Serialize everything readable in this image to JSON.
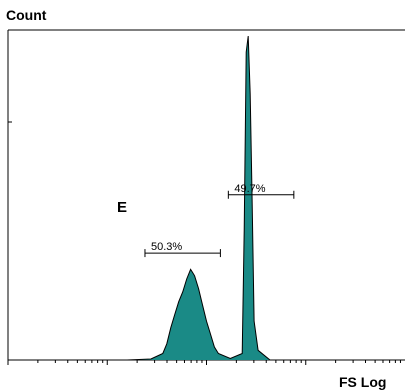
{
  "chart_data": {
    "type": "area",
    "title": "",
    "xlabel": "FS Log",
    "ylabel": "Count",
    "x_scale": "log",
    "x_decades": 4,
    "grid": false,
    "panel_label": "E",
    "fill_color": "#1a8a86",
    "outline_color": "#000000",
    "series": [
      {
        "x": [
          0.0,
          0.3,
          0.36,
          0.39,
          0.4,
          0.41,
          0.42,
          0.43,
          0.44,
          0.45,
          0.46,
          0.465,
          0.47,
          0.48,
          0.49,
          0.5,
          0.51,
          0.52,
          0.53,
          0.56,
          0.59,
          0.595,
          0.6,
          0.605,
          0.61,
          0.615,
          0.62,
          0.63,
          0.66,
          1.0
        ],
        "y": [
          0,
          0,
          0.3,
          2,
          5,
          10,
          14,
          18,
          21,
          25,
          28,
          27,
          26,
          22,
          17,
          12,
          8,
          4,
          2,
          0.5,
          2,
          40,
          95,
          100,
          82,
          48,
          12,
          3,
          0,
          0
        ]
      }
    ],
    "ylim": [
      0,
      100
    ],
    "gates": [
      {
        "label": "50.3%",
        "x_start": 0.345,
        "x_end": 0.535,
        "y": 33
      },
      {
        "label": "49.7%",
        "x_start": 0.555,
        "x_end": 0.72,
        "y": 51
      }
    ]
  }
}
